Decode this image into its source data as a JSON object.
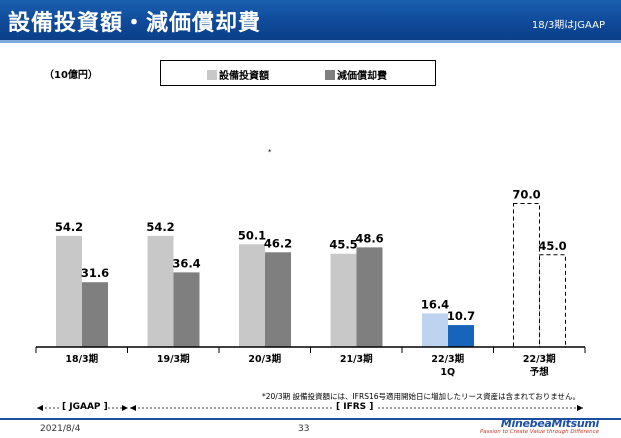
{
  "header": {
    "title": "設備投資額・減価償却費",
    "gaap_note": "18/3期はJGAAP"
  },
  "colors": {
    "header_blue": "#1b5fb0",
    "capex": "#c8c8c8",
    "depreciation": "#7f7f7f",
    "capex_q": "#bdd3ef",
    "depreciation_q": "#1765bb"
  },
  "chart_data": {
    "type": "bar",
    "unit_label": "（10億円）",
    "categories": [
      {
        "line1": "18/3期",
        "line2": ""
      },
      {
        "line1": "19/3期",
        "line2": ""
      },
      {
        "line1": "20/3期",
        "line2": ""
      },
      {
        "line1": "21/3期",
        "line2": ""
      },
      {
        "line1": "22/3期",
        "line2": "1Q"
      },
      {
        "line1": "22/3期",
        "line2": "予想"
      }
    ],
    "series": [
      {
        "name": "設備投資額",
        "values": [
          54.2,
          54.2,
          50.1,
          45.5,
          16.4,
          70.0
        ],
        "labels": [
          "54.2",
          "54.2",
          "50.1",
          "45.5",
          "16.4",
          "70.0"
        ]
      },
      {
        "name": "減価償却費",
        "values": [
          31.6,
          36.4,
          46.2,
          48.6,
          10.7,
          45.0
        ],
        "labels": [
          "31.6",
          "36.4",
          "46.2",
          "48.6",
          "10.7",
          "45.0"
        ]
      }
    ],
    "forecast_index": 5,
    "quarter_index": 4,
    "ylim": [
      0,
      80
    ],
    "grid": false,
    "legend": "top-center"
  },
  "annotations": {
    "asterisk": "*",
    "footnote": "*20/3期 設備投資額には、IFRS16号適用開始日に増加したリース資産は含まれておりません。",
    "jgaap_label": "[ JGAAP ]",
    "ifrs_label": "[ IFRS ]"
  },
  "footer": {
    "date": "2021/8/4",
    "page": "33",
    "logo_name": "MinebeaMitsumi",
    "logo_tagline": "Passion to Create Value through Difference"
  }
}
